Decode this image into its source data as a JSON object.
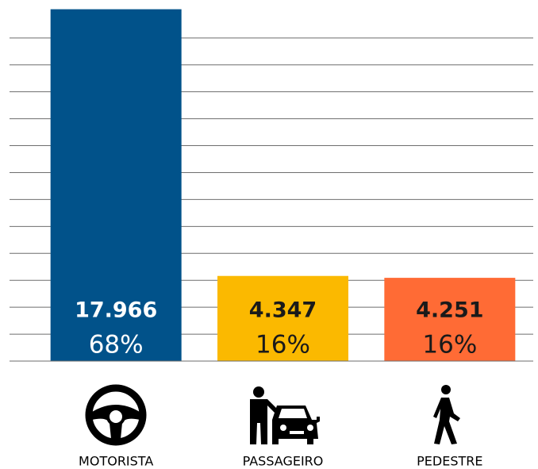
{
  "chart_data": {
    "type": "bar",
    "categories": [
      "MOTORISTA",
      "PASSAGEIRO",
      "PEDESTRE"
    ],
    "values": [
      17966,
      4347,
      4251
    ],
    "value_labels": [
      "17.966",
      "4.347",
      "4.251"
    ],
    "shares": [
      68,
      16,
      16
    ],
    "share_labels": [
      "68%",
      "16%",
      "16%"
    ],
    "colors": [
      "#01528a",
      "#fbb900",
      "#ff6b35"
    ],
    "label_colors": [
      "#ffffff",
      "#1a1a1a",
      "#1a1a1a"
    ],
    "ylim": [
      0,
      18000
    ],
    "yticks": [
      0,
      1375,
      2750,
      4125,
      5500,
      6875,
      8250,
      9625,
      11000,
      12375,
      13750,
      15125,
      16500
    ],
    "grid": true
  }
}
